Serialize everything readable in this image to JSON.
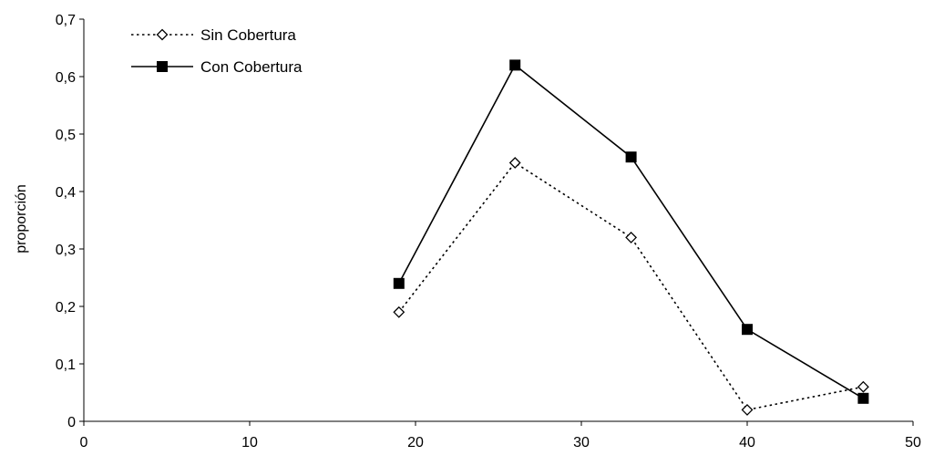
{
  "chart_data": {
    "type": "line",
    "title": "",
    "xlabel": "",
    "ylabel": "proporción",
    "xlim": [
      0,
      50
    ],
    "ylim": [
      0,
      0.7
    ],
    "x_ticks": [
      0,
      10,
      20,
      30,
      40,
      50
    ],
    "x_tick_labels": [
      "0",
      "10",
      "20",
      "30",
      "40",
      "50"
    ],
    "y_ticks": [
      0,
      0.1,
      0.2,
      0.3,
      0.4,
      0.5,
      0.6,
      0.7
    ],
    "y_tick_labels": [
      "0",
      "0,1",
      "0,2",
      "0,3",
      "0,4",
      "0,5",
      "0,6",
      "0,7"
    ],
    "grid": false,
    "legend_position": "top-left",
    "series": [
      {
        "name": "Sin Cobertura",
        "line_style": "dotted",
        "marker": "open-diamond",
        "color": "#000000",
        "x": [
          19,
          26,
          33,
          40,
          47
        ],
        "y": [
          0.19,
          0.45,
          0.32,
          0.02,
          0.06
        ]
      },
      {
        "name": "Con Cobertura",
        "line_style": "solid",
        "marker": "filled-square",
        "color": "#000000",
        "x": [
          19,
          26,
          33,
          40,
          47
        ],
        "y": [
          0.24,
          0.62,
          0.46,
          0.16,
          0.04
        ]
      }
    ]
  }
}
